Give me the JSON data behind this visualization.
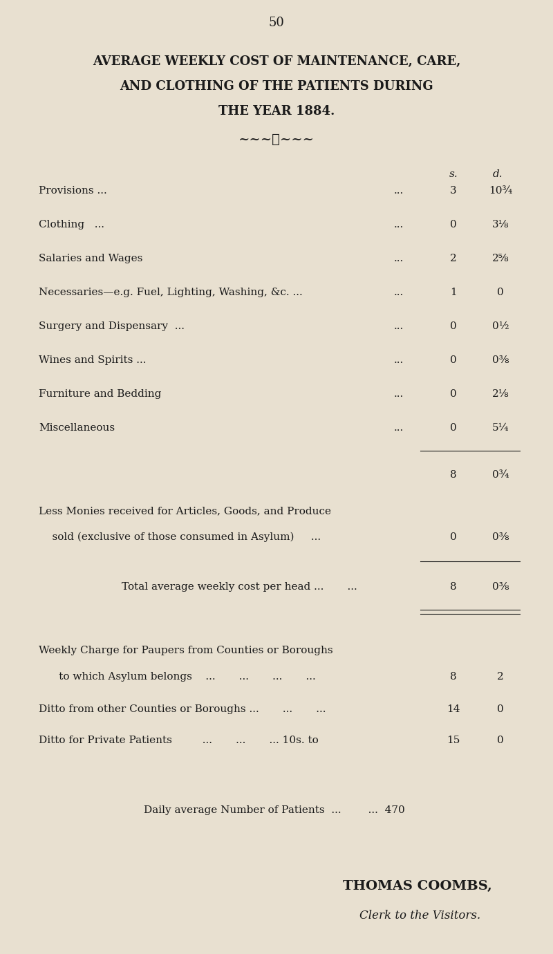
{
  "bg_color": "#e8e0d0",
  "text_color": "#1a1a1a",
  "page_number": "50",
  "title_lines": [
    "AVERAGE WEEKLY COST OF MAINTENANCE, CARE,",
    "AND CLOTHING OF THE PATIENTS DURING",
    "THE YEAR 1884."
  ],
  "col_header": [
    "s.",
    "d."
  ],
  "rows": [
    {
      "label": "Provisions ...",
      "dots": "...          ...          ...          ...          ...",
      "s": "3",
      "d": "10¾"
    },
    {
      "label": "Clothing   ...",
      "dots": "...          ...          ...          ...          ...",
      "s": "0",
      "d": "3⅛"
    },
    {
      "label": "Salaries and Wages",
      "dots": "...          ...          ...          ...",
      "s": "2",
      "d": "2⅝"
    },
    {
      "label": "Necessaries—e.g. Fuel, Lighting, Washing, &c. ...",
      "dots": "...",
      "s": "1",
      "d": "0"
    },
    {
      "label": "Surgery and Dispensary  ...",
      "dots": "...          ...          ...",
      "s": "0",
      "d": "0½"
    },
    {
      "label": "Wines and Spirits ...",
      "dots": "...          ...          ...          ...",
      "s": "0",
      "d": "0⅜"
    },
    {
      "label": "Furniture and Bedding",
      "dots": "...          ...          ...          ...",
      "s": "0",
      "d": "2⅛"
    },
    {
      "label": "Miscellaneous",
      "dots": "...          ...          ...          ...          ...",
      "s": "0",
      "d": "5¼"
    }
  ],
  "subtotal": {
    "s": "8",
    "d": "0¾"
  },
  "less_line1": "Less Monies received for Articles, Goods, and Produce",
  "less_line2": "    sold (exclusive of those consumed in Asylum)     ...",
  "less_s": "0",
  "less_d": "0⅜",
  "total_label": "Total average weekly cost per head ...       ...",
  "total_s": "8",
  "total_d": "0⅜",
  "weekly_line1": "Weekly Charge for Paupers from Counties or Boroughs",
  "weekly_line2": "      to which Asylum belongs    ...       ...       ...       ...",
  "weekly_s": "8",
  "weekly_d": "2",
  "ditto1_label": "Ditto from other Counties or Boroughs ...       ...       ...",
  "ditto1_s": "14",
  "ditto1_d": "0",
  "ditto2_label": "Ditto for Private Patients         ...       ...       ... 10s. to",
  "ditto2_s": "15",
  "ditto2_d": "0",
  "daily_label": "Daily average Number of Patients  ...        ...  470",
  "signature1": "THOMAS COOMBS,",
  "signature2": "Clerk to the Visitors."
}
